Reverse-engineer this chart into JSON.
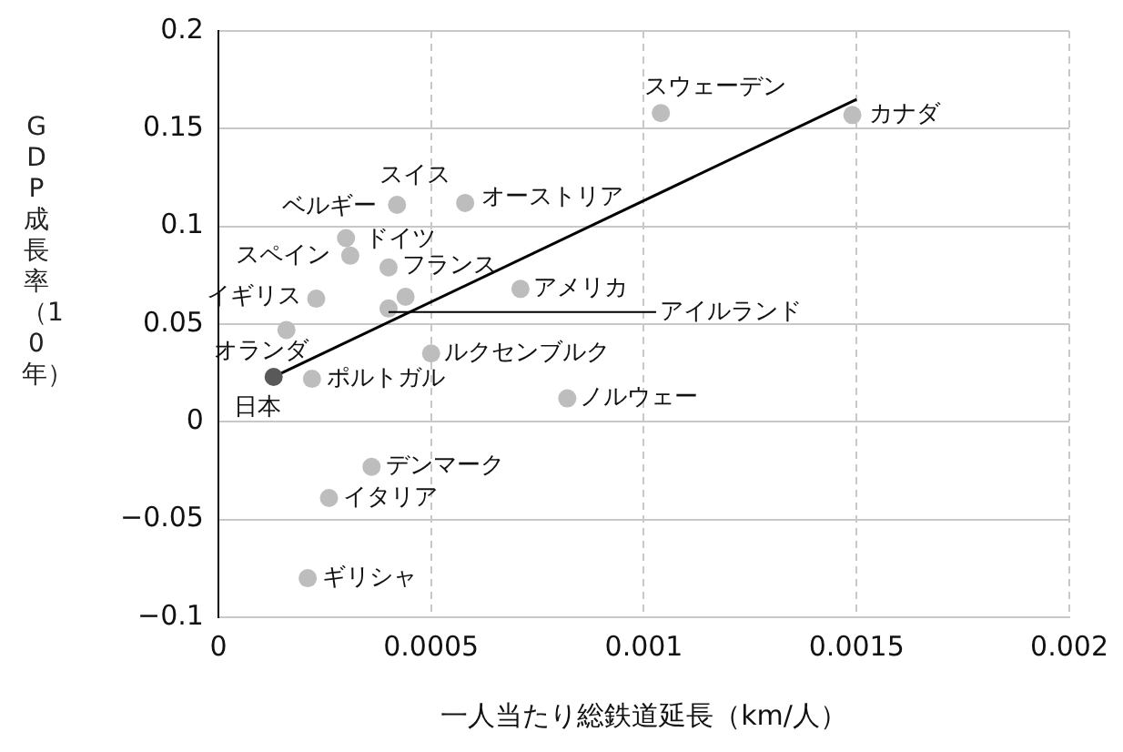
{
  "chart_data": {
    "type": "scatter",
    "xlabel": "一人当たり総鉄道延長（km/人）",
    "ylabel": "GDP成長率（10年）",
    "xlim": [
      0,
      0.002
    ],
    "xticks": [
      0,
      0.0005,
      0.001,
      0.0015,
      0.002
    ],
    "ylim": [
      -0.1,
      0.2
    ],
    "yticks": [
      -0.1,
      -0.05,
      0,
      0.05,
      0.1,
      0.15,
      0.2
    ],
    "grid": true,
    "legend": false,
    "marker": "circle",
    "series": [
      {
        "x": [
          0.00104,
          0.00149,
          0.00042,
          0.0003,
          0.00058,
          0.00031,
          0.0004,
          0.00044,
          0.0004,
          0.00023,
          0.00016,
          0.00013,
          0.00022,
          0.0005,
          0.00071,
          0.00082,
          0.00036,
          0.00026,
          0.00021
        ],
        "values": [
          0.158,
          0.157,
          0.111,
          0.094,
          0.112,
          0.085,
          0.079,
          0.064,
          0.058,
          0.063,
          0.047,
          0.023,
          0.022,
          0.035,
          0.068,
          0.012,
          -0.023,
          -0.039,
          -0.08
        ],
        "colors": [
          "#bdbdbd",
          "#bdbdbd",
          "#bdbdbd",
          "#bdbdbd",
          "#bdbdbd",
          "#bdbdbd",
          "#bdbdbd",
          "#bdbdbd",
          "#bdbdbd",
          "#bdbdbd",
          "#bdbdbd",
          "#595959",
          "#bdbdbd",
          "#bdbdbd",
          "#bdbdbd",
          "#bdbdbd",
          "#bdbdbd",
          "#bdbdbd",
          "#bdbdbd"
        ]
      },
      {
        "type": "line",
        "color": "#000000",
        "x": [
          0.00013,
          0.0015
        ],
        "values": [
          0.023,
          0.165
        ],
        "marker": "none"
      }
    ],
    "annotations": [
      {
        "text": "スウェーデン",
        "x": 0.00104,
        "y": 0.158
      },
      {
        "text": "カナダ",
        "x": 0.00149,
        "y": 0.157
      },
      {
        "text": "スイス",
        "x": 0.00042,
        "y": 0.111
      },
      {
        "text": "ベルギー",
        "x": 0.0003,
        "y": 0.094
      },
      {
        "text": "オーストリア",
        "x": 0.00058,
        "y": 0.112
      },
      {
        "text": "スペイン",
        "x": 0.00031,
        "y": 0.085
      },
      {
        "text": "ドイツ",
        "x": 0.0004,
        "y": 0.079
      },
      {
        "text": "フランス",
        "x": 0.00044,
        "y": 0.064
      },
      {
        "text": "アイルランド",
        "x": 0.0004,
        "y": 0.058
      },
      {
        "text": "イギリス",
        "x": 0.00023,
        "y": 0.063
      },
      {
        "text": "オランダ",
        "x": 0.00016,
        "y": 0.047
      },
      {
        "text": "日本",
        "x": 0.00013,
        "y": 0.023
      },
      {
        "text": "ポルトガル",
        "x": 0.00022,
        "y": 0.022
      },
      {
        "text": "ルクセンブルク",
        "x": 0.0005,
        "y": 0.035
      },
      {
        "text": "アメリカ",
        "x": 0.00071,
        "y": 0.068
      },
      {
        "text": "ノルウェー",
        "x": 0.00082,
        "y": 0.012
      },
      {
        "text": "デンマーク",
        "x": 0.00036,
        "y": -0.023
      },
      {
        "text": "イタリア",
        "x": 0.00026,
        "y": -0.039
      },
      {
        "text": "ギリシャ",
        "x": 0.00021,
        "y": -0.08
      }
    ]
  }
}
